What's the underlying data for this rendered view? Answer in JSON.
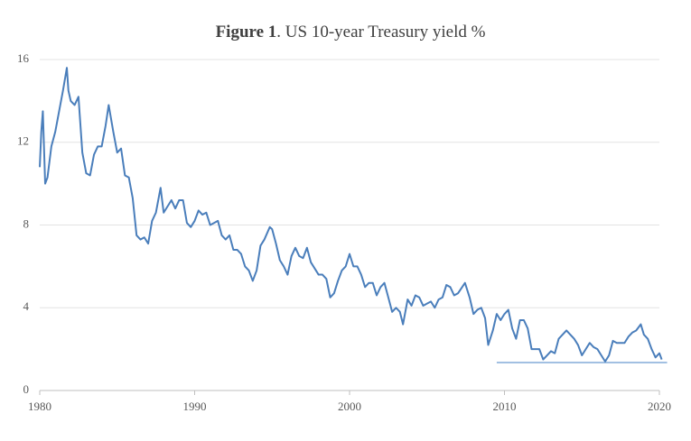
{
  "chart_data": {
    "type": "line",
    "title": [
      "Figure 1",
      ". US 10-year Treasury yield %"
    ],
    "xlim": [
      1980,
      2020
    ],
    "xticks": [
      1980,
      1990,
      2000,
      2010,
      2020
    ],
    "ylim": [
      0,
      16
    ],
    "yticks": [
      0,
      4,
      8,
      12,
      16
    ],
    "grid": true,
    "series": [
      {
        "color": "#4a7ebb",
        "x": [
          1980.0,
          1980.1,
          1980.2,
          1980.35,
          1980.5,
          1980.75,
          1981.0,
          1981.25,
          1981.5,
          1981.75,
          1981.85,
          1982.0,
          1982.25,
          1982.5,
          1982.75,
          1983.0,
          1983.25,
          1983.5,
          1983.75,
          1984.0,
          1984.25,
          1984.45,
          1984.75,
          1985.0,
          1985.25,
          1985.5,
          1985.75,
          1986.0,
          1986.25,
          1986.5,
          1986.75,
          1987.0,
          1987.25,
          1987.5,
          1987.8,
          1988.0,
          1988.25,
          1988.5,
          1988.75,
          1989.0,
          1989.25,
          1989.5,
          1989.75,
          1990.0,
          1990.25,
          1990.5,
          1990.75,
          1991.0,
          1991.25,
          1991.5,
          1991.75,
          1992.0,
          1992.25,
          1992.5,
          1992.75,
          1993.0,
          1993.25,
          1993.5,
          1993.75,
          1994.0,
          1994.25,
          1994.5,
          1994.85,
          1995.0,
          1995.25,
          1995.5,
          1995.75,
          1996.0,
          1996.25,
          1996.5,
          1996.75,
          1997.0,
          1997.25,
          1997.5,
          1997.75,
          1998.0,
          1998.25,
          1998.5,
          1998.75,
          1999.0,
          1999.25,
          1999.5,
          1999.75,
          2000.0,
          2000.25,
          2000.5,
          2000.75,
          2001.0,
          2001.25,
          2001.5,
          2001.75,
          2002.0,
          2002.25,
          2002.5,
          2002.75,
          2003.0,
          2003.25,
          2003.45,
          2003.75,
          2004.0,
          2004.25,
          2004.5,
          2004.75,
          2005.0,
          2005.25,
          2005.5,
          2005.75,
          2006.0,
          2006.25,
          2006.5,
          2006.75,
          2007.0,
          2007.45,
          2007.75,
          2008.0,
          2008.25,
          2008.5,
          2008.75,
          2008.95,
          2009.25,
          2009.5,
          2009.75,
          2010.0,
          2010.25,
          2010.5,
          2010.75,
          2011.0,
          2011.25,
          2011.5,
          2011.75,
          2012.0,
          2012.25,
          2012.5,
          2012.75,
          2013.0,
          2013.25,
          2013.5,
          2013.75,
          2014.0,
          2014.25,
          2014.5,
          2014.75,
          2015.0,
          2015.25,
          2015.5,
          2015.75,
          2016.0,
          2016.5,
          2016.75,
          2017.0,
          2017.25,
          2017.5,
          2017.75,
          2018.0,
          2018.25,
          2018.5,
          2018.8,
          2019.0,
          2019.25,
          2019.5,
          2019.75,
          2020.0,
          2020.15
        ],
        "values": [
          10.8,
          12.5,
          13.5,
          10.0,
          10.3,
          11.8,
          12.5,
          13.5,
          14.5,
          15.6,
          14.5,
          14.0,
          13.8,
          14.2,
          11.5,
          10.5,
          10.4,
          11.4,
          11.8,
          11.8,
          12.8,
          13.8,
          12.5,
          11.5,
          11.7,
          10.4,
          10.3,
          9.3,
          7.5,
          7.3,
          7.4,
          7.1,
          8.2,
          8.6,
          9.8,
          8.6,
          8.9,
          9.2,
          8.8,
          9.2,
          9.2,
          8.1,
          7.9,
          8.2,
          8.7,
          8.5,
          8.6,
          8.0,
          8.1,
          8.2,
          7.5,
          7.3,
          7.5,
          6.8,
          6.8,
          6.6,
          6.0,
          5.8,
          5.3,
          5.8,
          7.0,
          7.3,
          7.9,
          7.8,
          7.1,
          6.3,
          6.0,
          5.6,
          6.5,
          6.9,
          6.5,
          6.4,
          6.9,
          6.2,
          5.9,
          5.6,
          5.6,
          5.4,
          4.5,
          4.7,
          5.3,
          5.8,
          6.0,
          6.6,
          6.0,
          6.0,
          5.6,
          5.0,
          5.2,
          5.2,
          4.6,
          5.0,
          5.2,
          4.5,
          3.8,
          4.0,
          3.8,
          3.2,
          4.4,
          4.1,
          4.6,
          4.5,
          4.1,
          4.2,
          4.3,
          4.0,
          4.4,
          4.5,
          5.1,
          5.0,
          4.6,
          4.7,
          5.2,
          4.5,
          3.7,
          3.9,
          4.0,
          3.5,
          2.2,
          2.9,
          3.7,
          3.4,
          3.7,
          3.9,
          3.0,
          2.5,
          3.4,
          3.4,
          3.0,
          2.0,
          2.0,
          2.0,
          1.5,
          1.7,
          1.9,
          1.8,
          2.5,
          2.7,
          2.9,
          2.7,
          2.5,
          2.2,
          1.7,
          2.0,
          2.3,
          2.1,
          2.0,
          1.4,
          1.7,
          2.4,
          2.3,
          2.3,
          2.3,
          2.6,
          2.8,
          2.9,
          3.2,
          2.7,
          2.5,
          2.0,
          1.6,
          1.8,
          1.5
        ]
      },
      {
        "color": "#6a9bd1",
        "x": [
          2009.5,
          2020.5
        ],
        "values": [
          1.35,
          1.35
        ]
      }
    ]
  }
}
